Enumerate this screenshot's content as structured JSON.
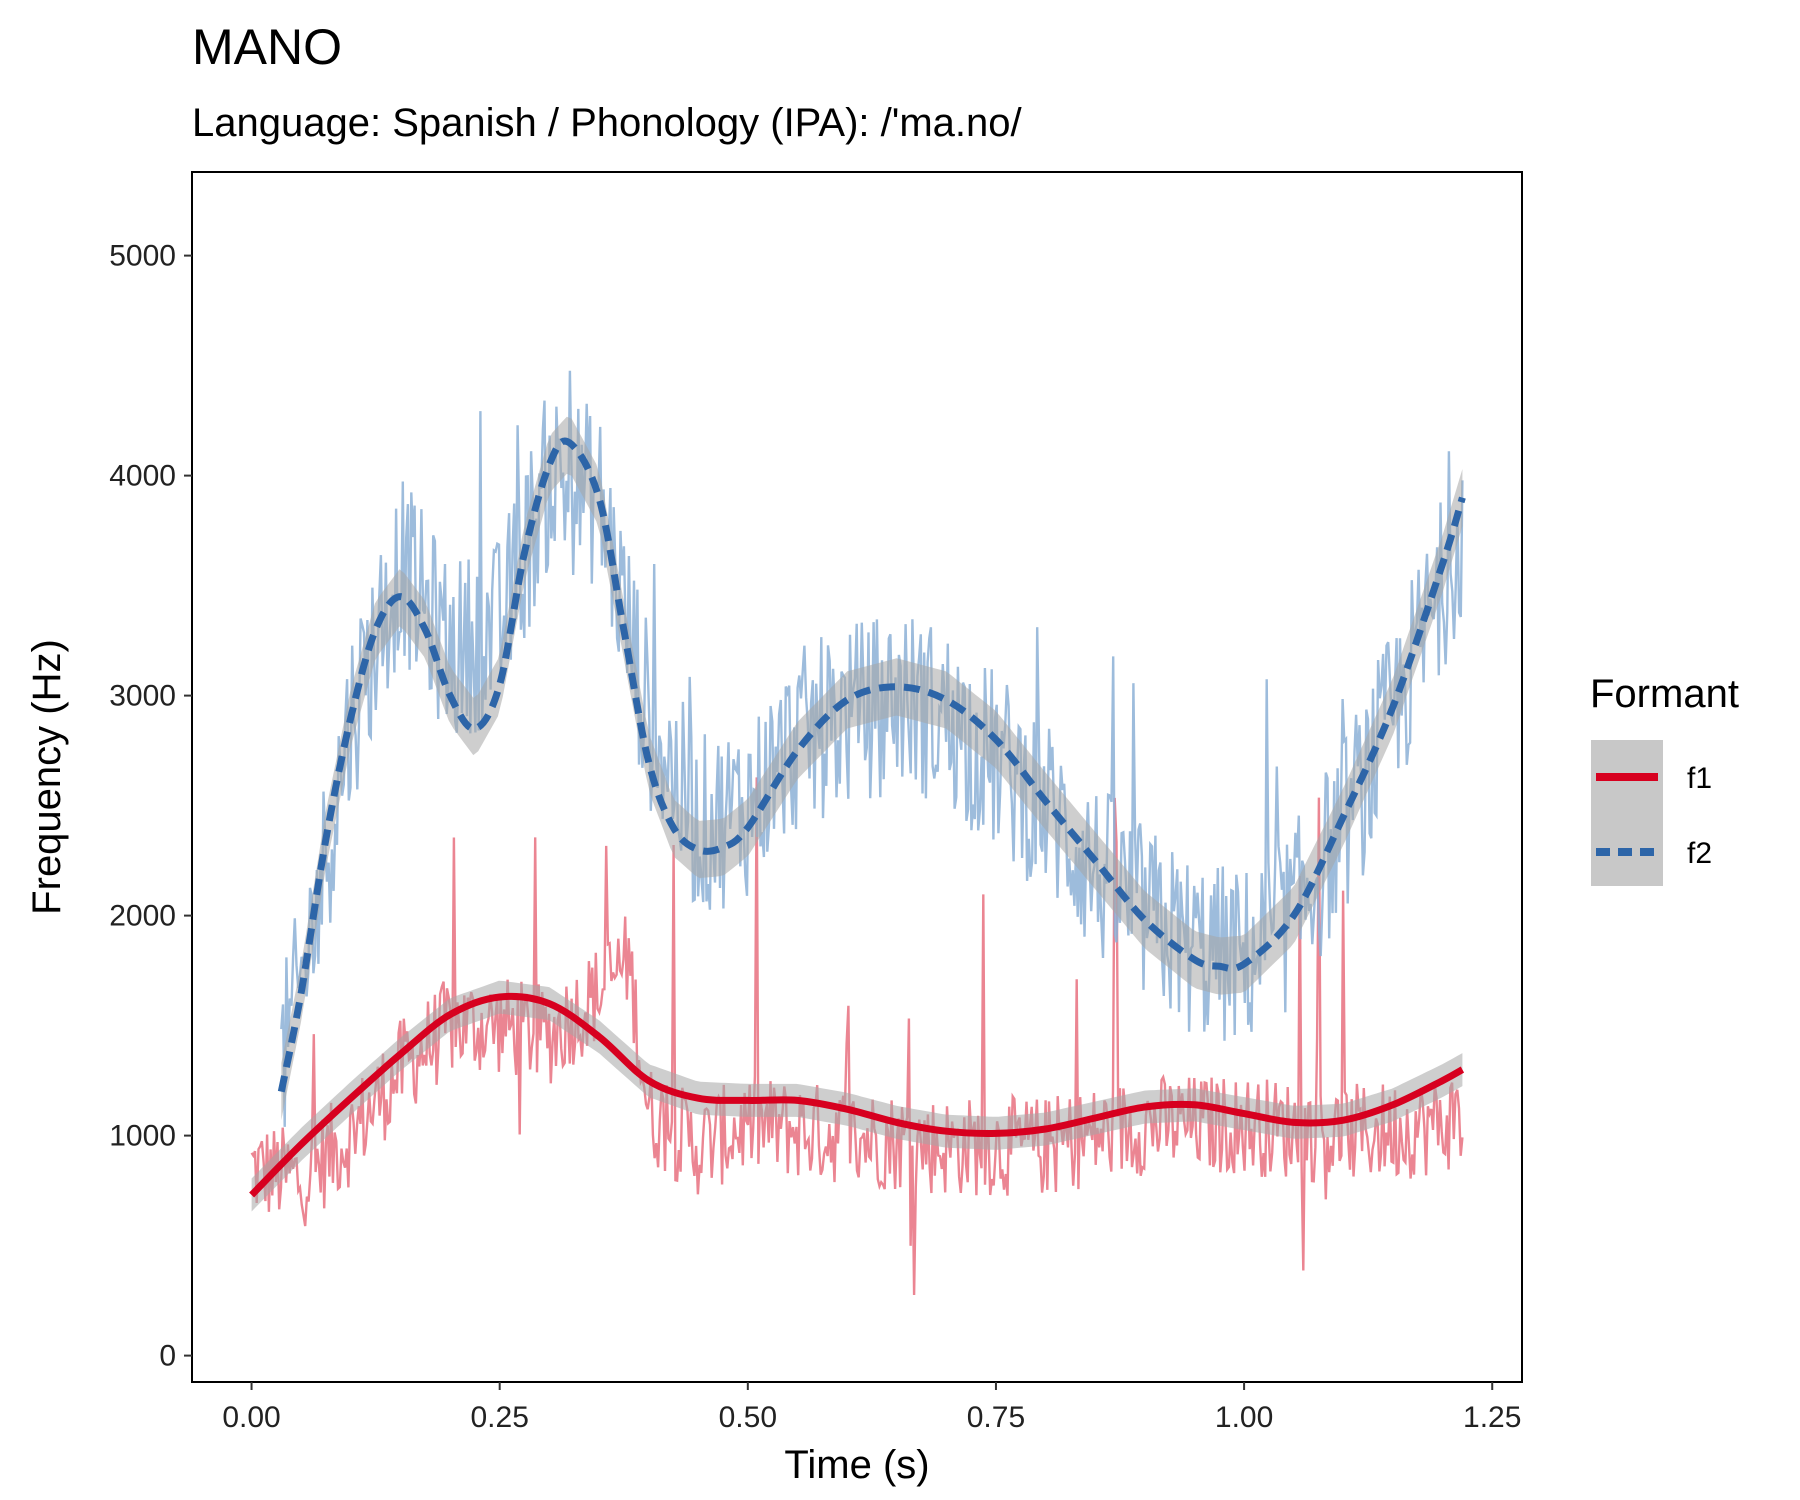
{
  "chart_data": {
    "type": "line",
    "title": "MANO",
    "subtitle": "Language: Spanish / Phonology (IPA): /'ma.no/",
    "xlabel": "Time (s)",
    "ylabel": "Frequency (Hz)",
    "xlim": [
      -0.06,
      1.28
    ],
    "ylim": [
      -120,
      5380
    ],
    "xticks": [
      0.0,
      0.25,
      0.5,
      0.75,
      1.0,
      1.25
    ],
    "xtick_labels": [
      "0.00",
      "0.25",
      "0.50",
      "0.75",
      "1.00",
      "1.25"
    ],
    "yticks": [
      0,
      1000,
      2000,
      3000,
      4000,
      5000
    ],
    "ytick_labels": [
      "0",
      "1000",
      "2000",
      "3000",
      "4000",
      "5000"
    ],
    "grid": false,
    "legend": {
      "title": "Formant",
      "position": "right",
      "entries": [
        "f1",
        "f2"
      ]
    },
    "series": [
      {
        "name": "f1",
        "color": "#d7001f",
        "raw_color": "#e8707f",
        "linestyle": "solid",
        "smooth": {
          "x": [
            0.0,
            0.05,
            0.1,
            0.15,
            0.2,
            0.25,
            0.3,
            0.35,
            0.4,
            0.45,
            0.5,
            0.55,
            0.6,
            0.65,
            0.7,
            0.75,
            0.8,
            0.85,
            0.9,
            0.95,
            1.0,
            1.05,
            1.1,
            1.15,
            1.2,
            1.22
          ],
          "y": [
            730,
            960,
            1170,
            1370,
            1550,
            1630,
            1600,
            1450,
            1250,
            1170,
            1160,
            1160,
            1120,
            1060,
            1020,
            1010,
            1030,
            1080,
            1130,
            1140,
            1100,
            1060,
            1070,
            1140,
            1250,
            1300
          ]
        },
        "raw_anchors": {
          "x": [
            0.0,
            0.05,
            0.1,
            0.15,
            0.2,
            0.25,
            0.3,
            0.35,
            0.38,
            0.4,
            0.45,
            0.5,
            0.6,
            0.7,
            0.8,
            0.9,
            1.0,
            1.1,
            1.2,
            1.22
          ],
          "y": [
            850,
            800,
            1000,
            1300,
            1500,
            1500,
            1450,
            1650,
            1800,
            1100,
            950,
            1050,
            1000,
            950,
            950,
            1050,
            1050,
            1000,
            1050,
            1100
          ]
        }
      },
      {
        "name": "f2",
        "color": "#2d65a8",
        "raw_color": "#8cb0d6",
        "linestyle": "dashed",
        "smooth": {
          "x": [
            0.03,
            0.05,
            0.075,
            0.1,
            0.125,
            0.15,
            0.175,
            0.2,
            0.225,
            0.25,
            0.275,
            0.3,
            0.32,
            0.35,
            0.375,
            0.4,
            0.425,
            0.45,
            0.475,
            0.5,
            0.55,
            0.6,
            0.65,
            0.7,
            0.75,
            0.8,
            0.85,
            0.9,
            0.95,
            0.975,
            1.0,
            1.05,
            1.1,
            1.15,
            1.2,
            1.22
          ],
          "y": [
            1200,
            1650,
            2350,
            2900,
            3300,
            3450,
            3300,
            3000,
            2850,
            3050,
            3650,
            4050,
            4150,
            3900,
            3300,
            2700,
            2400,
            2300,
            2310,
            2400,
            2750,
            2980,
            3040,
            2980,
            2800,
            2520,
            2250,
            1980,
            1800,
            1770,
            1780,
            2000,
            2450,
            2950,
            3600,
            3900
          ]
        },
        "raw_anchors": {
          "x": [
            0.03,
            0.06,
            0.1,
            0.15,
            0.2,
            0.25,
            0.3,
            0.35,
            0.4,
            0.45,
            0.5,
            0.55,
            0.6,
            0.65,
            0.7,
            0.75,
            0.8,
            0.85,
            0.9,
            0.95,
            1.0,
            1.05,
            1.1,
            1.15,
            1.2,
            1.22
          ],
          "y": [
            1300,
            1900,
            2900,
            3600,
            3200,
            3300,
            4000,
            3900,
            2900,
            2400,
            2500,
            2800,
            2900,
            3000,
            2900,
            2700,
            2500,
            2200,
            2000,
            1850,
            1800,
            2000,
            2400,
            2900,
            3500,
            3800
          ]
        }
      }
    ]
  }
}
